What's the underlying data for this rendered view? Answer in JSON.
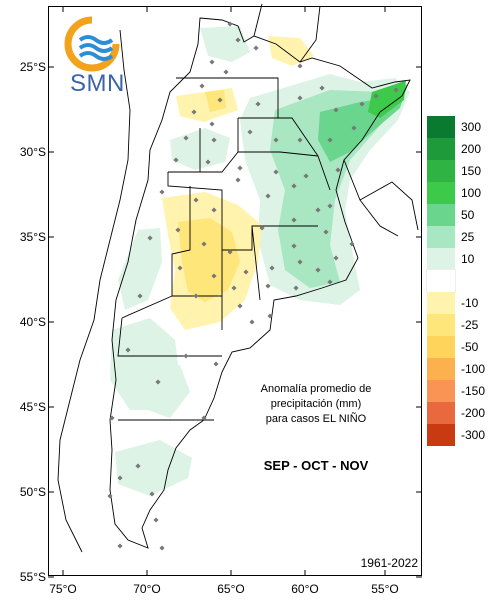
{
  "logo": {
    "text": "SMN",
    "icon": "smn-sun-wave-logo"
  },
  "map": {
    "lon_ticks": [
      "75°O",
      "70°O",
      "65°O",
      "60°O",
      "55°O"
    ],
    "lat_ticks": [
      "25°S",
      "30°S",
      "35°S",
      "40°S",
      "45°S",
      "50°S",
      "55°S"
    ],
    "annotation_lines": [
      "Anomalía promedio de",
      "precipitación (mm)",
      "para casos EL NIÑO"
    ],
    "season": "SEP - OCT - NOV",
    "period": "1961-2022"
  },
  "legend": {
    "entries": [
      {
        "label": "300",
        "color": "#0b7a31"
      },
      {
        "label": "200",
        "color": "#1e9a3a"
      },
      {
        "label": "150",
        "color": "#2fb443"
      },
      {
        "label": "100",
        "color": "#3dc94a"
      },
      {
        "label": "50",
        "color": "#6ad68d"
      },
      {
        "label": "25",
        "color": "#a9e6c2"
      },
      {
        "label": "10",
        "color": "#dcf3e6"
      },
      {
        "label": "",
        "color": "#ffffff"
      },
      {
        "label": "-10",
        "color": "#fff3ad"
      },
      {
        "label": "-25",
        "color": "#ffe67a"
      },
      {
        "label": "-50",
        "color": "#ffd45a"
      },
      {
        "label": "-100",
        "color": "#fdb04e"
      },
      {
        "label": "-150",
        "color": "#f99455"
      },
      {
        "label": "-200",
        "color": "#e9693f"
      },
      {
        "label": "-300",
        "color": "#c93a12"
      }
    ]
  }
}
